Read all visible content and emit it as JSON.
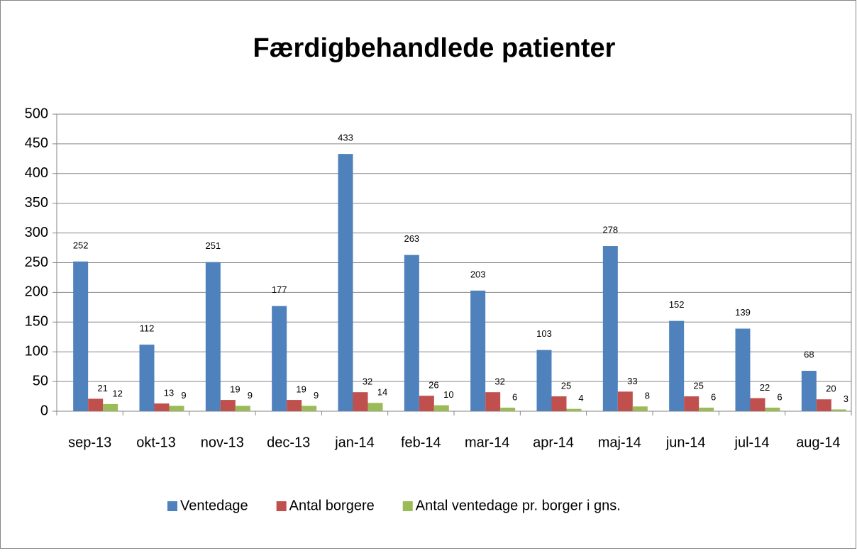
{
  "chart_data": {
    "type": "bar",
    "title": "Færdigbehandlede patienter",
    "categories": [
      "sep-13",
      "okt-13",
      "nov-13",
      "dec-13",
      "jan-14",
      "feb-14",
      "mar-14",
      "apr-14",
      "maj-14",
      "jun-14",
      "jul-14",
      "aug-14"
    ],
    "series": [
      {
        "name": "Ventedage",
        "color": "#4f81bd",
        "values": [
          252,
          112,
          251,
          177,
          433,
          263,
          203,
          103,
          278,
          152,
          139,
          68
        ]
      },
      {
        "name": "Antal borgere",
        "color": "#c0504d",
        "values": [
          21,
          13,
          19,
          19,
          32,
          26,
          32,
          25,
          33,
          25,
          22,
          20
        ]
      },
      {
        "name": "Antal ventedage pr. borger i gns.",
        "color": "#9bbb59",
        "values": [
          12,
          9,
          9,
          9,
          14,
          10,
          6,
          4,
          8,
          6,
          6,
          3
        ]
      }
    ],
    "ylim": [
      0,
      500
    ],
    "yticks": [
      0,
      50,
      100,
      150,
      200,
      250,
      300,
      350,
      400,
      450,
      500
    ],
    "grid": true,
    "legend": "bottom"
  }
}
